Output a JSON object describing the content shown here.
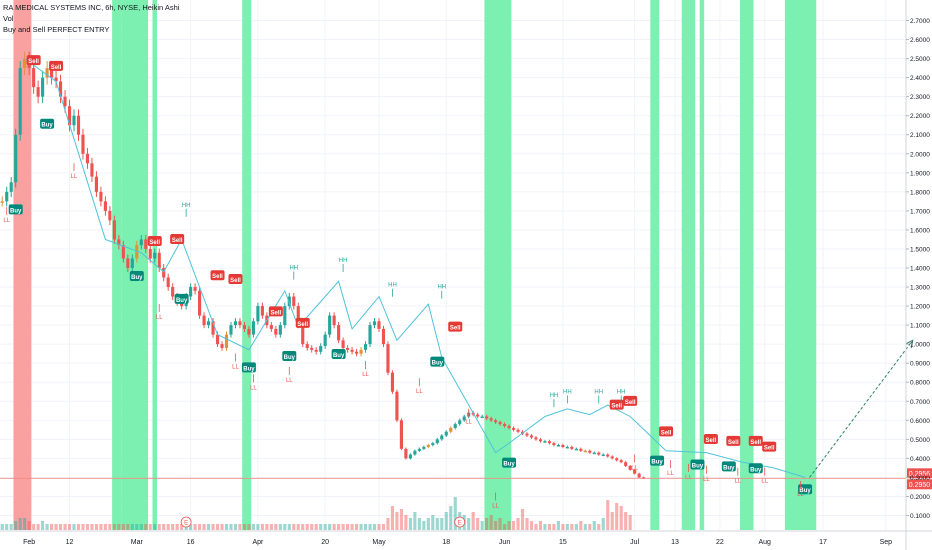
{
  "legend": {
    "title": "RA MEDICAL SYSTEMS INC, 6h, NYSE, Heikin Ashi",
    "vol": "Vol",
    "indicator": "Buy and Sell PERFECT ENTRY"
  },
  "colors": {
    "bull": "#26a69a",
    "bear": "#ef5350",
    "orange": "#e0913a",
    "green_zone": "#7cf0b0",
    "red_zone": "#f9a1a1",
    "zigzag": "#4fc3d9",
    "arrow": "#2e7d6a",
    "price_line": "#f28b82"
  },
  "chart_data": {
    "type": "candlestick",
    "title": "RA MEDICAL SYSTEMS INC, 6h, NYSE, Heikin Ashi",
    "yscale": "linear",
    "ylim": [
      0.05,
      2.75
    ],
    "yticks": [
      "2.7000",
      "2.6000",
      "2.5000",
      "2.4000",
      "2.3000",
      "2.2000",
      "2.1000",
      "2.0000",
      "1.9000",
      "1.8000",
      "1.7000",
      "1.6000",
      "1.5000",
      "1.4000",
      "1.3000",
      "1.2000",
      "1.1000",
      "1.0000",
      "0.9000",
      "0.8000",
      "0.7000",
      "0.6000",
      "0.5000",
      "0.4000",
      "0.3000",
      "0.2000",
      "0.1000"
    ],
    "xtick_labels": [
      {
        "label": "Feb",
        "i": 6
      },
      {
        "label": "12",
        "i": 15
      },
      {
        "label": "Mar",
        "i": 30
      },
      {
        "label": "16",
        "i": 42
      },
      {
        "label": "Apr",
        "i": 57
      },
      {
        "label": "20",
        "i": 72
      },
      {
        "label": "May",
        "i": 84
      },
      {
        "label": "18",
        "i": 99
      },
      {
        "label": "Jun",
        "i": 112
      },
      {
        "label": "15",
        "i": 125
      },
      {
        "label": "Jul",
        "i": 141
      },
      {
        "label": "13",
        "i": 150
      },
      {
        "label": "22",
        "i": 160
      },
      {
        "label": "Aug",
        "i": 170
      },
      {
        "label": "17",
        "i": 183
      },
      {
        "label": "Sep",
        "i": 197
      }
    ],
    "last_price_labels": [
      "0.2956",
      "0.2950"
    ],
    "price_marker": 0.2953,
    "n_slots": 202,
    "closes": [
      1.75,
      1.8,
      1.85,
      2.1,
      2.45,
      2.5,
      2.45,
      2.35,
      2.3,
      2.4,
      2.45,
      2.4,
      2.38,
      2.3,
      2.25,
      2.15,
      2.2,
      2.1,
      2.0,
      1.95,
      1.88,
      1.8,
      1.75,
      1.7,
      1.65,
      1.55,
      1.52,
      1.45,
      1.4,
      1.45,
      1.52,
      1.55,
      1.5,
      1.45,
      1.48,
      1.4,
      1.35,
      1.3,
      1.25,
      1.22,
      1.2,
      1.25,
      1.3,
      1.28,
      1.15,
      1.1,
      1.12,
      1.05,
      1.0,
      0.98,
      1.05,
      1.1,
      1.12,
      1.1,
      1.08,
      1.05,
      1.12,
      1.2,
      1.15,
      1.1,
      1.08,
      1.05,
      1.1,
      1.2,
      1.25,
      1.2,
      1.1,
      1.0,
      0.98,
      0.97,
      0.96,
      0.99,
      1.05,
      1.15,
      1.1,
      1.02,
      0.98,
      0.97,
      0.96,
      0.95,
      0.97,
      1.0,
      1.1,
      1.12,
      1.08,
      1.0,
      0.85,
      0.75,
      0.6,
      0.45,
      0.4,
      0.42,
      0.44,
      0.45,
      0.46,
      0.47,
      0.48,
      0.5,
      0.52,
      0.54,
      0.56,
      0.58,
      0.6,
      0.62,
      0.64,
      0.63,
      0.62,
      0.62,
      0.61,
      0.6,
      0.59,
      0.58,
      0.57,
      0.56,
      0.55,
      0.54,
      0.53,
      0.52,
      0.51,
      0.5,
      0.49,
      0.49,
      0.48,
      0.47,
      0.47,
      0.46,
      0.46,
      0.45,
      0.45,
      0.44,
      0.44,
      0.43,
      0.43,
      0.42,
      0.42,
      0.41,
      0.4,
      0.39,
      0.38,
      0.36,
      0.34,
      0.32,
      0.3,
      0.2953
    ],
    "volume_heights": [
      0.1,
      0.1,
      0.1,
      0.15,
      0.2,
      0.2,
      0.15,
      0.1,
      0.1,
      0.15,
      0.1,
      0.1,
      0.1,
      0.1,
      0.1,
      0.1,
      0.1,
      0.1,
      0.1,
      0.1,
      0.1,
      0.1,
      0.1,
      0.1,
      0.1,
      0.1,
      0.1,
      0.1,
      0.1,
      0.1,
      0.1,
      0.1,
      0.1,
      0.1,
      0.1,
      0.1,
      0.1,
      0.1,
      0.1,
      0.1,
      0.1,
      0.1,
      0.1,
      0.1,
      0.1,
      0.1,
      0.1,
      0.1,
      0.1,
      0.1,
      0.1,
      0.1,
      0.1,
      0.1,
      0.1,
      0.1,
      0.1,
      0.1,
      0.1,
      0.1,
      0.1,
      0.1,
      0.1,
      0.1,
      0.1,
      0.1,
      0.1,
      0.1,
      0.1,
      0.1,
      0.1,
      0.1,
      0.1,
      0.1,
      0.1,
      0.1,
      0.1,
      0.1,
      0.1,
      0.1,
      0.1,
      0.1,
      0.1,
      0.1,
      0.1,
      0.1,
      0.2,
      0.4,
      0.3,
      0.35,
      0.25,
      0.2,
      0.3,
      0.2,
      0.15,
      0.2,
      0.25,
      0.2,
      0.2,
      0.3,
      0.4,
      0.55,
      0.3,
      0.25,
      0.2,
      0.3,
      0.2,
      0.15,
      0.2,
      0.25,
      0.15,
      0.2,
      0.1,
      0.15,
      0.15,
      0.2,
      0.35,
      0.2,
      0.15,
      0.1,
      0.15,
      0.1,
      0.1,
      0.1,
      0.15,
      0.1,
      0.1,
      0.1,
      0.1,
      0.15,
      0.1,
      0.1,
      0.15,
      0.1,
      0.2,
      0.5,
      0.3,
      0.45,
      0.4,
      0.3,
      0.25
    ],
    "green_zones": [
      [
        25,
        26
      ],
      [
        27,
        32
      ],
      [
        34,
        34
      ],
      [
        54,
        55
      ],
      [
        108,
        113
      ],
      [
        145,
        146
      ],
      [
        152,
        154
      ],
      [
        156,
        156
      ],
      [
        165,
        167
      ],
      [
        175,
        181
      ]
    ],
    "red_zones": [
      [
        3,
        6
      ]
    ],
    "buy_labels": [
      [
        3,
        1.75
      ],
      [
        10,
        2.2
      ],
      [
        30,
        1.4
      ],
      [
        40,
        1.28
      ],
      [
        55,
        0.92
      ],
      [
        64,
        0.98
      ],
      [
        75,
        0.99
      ],
      [
        97,
        0.95
      ],
      [
        113,
        0.42
      ],
      [
        146,
        0.43
      ],
      [
        155,
        0.41
      ],
      [
        162,
        0.4
      ],
      [
        168,
        0.39
      ],
      [
        179,
        0.28
      ]
    ],
    "sell_labels": [
      [
        7,
        2.45
      ],
      [
        12,
        2.42
      ],
      [
        34,
        1.5
      ],
      [
        39,
        1.51
      ],
      [
        48,
        1.32
      ],
      [
        52,
        1.3
      ],
      [
        61,
        1.13
      ],
      [
        67,
        1.07
      ],
      [
        101,
        1.05
      ],
      [
        137,
        0.64
      ],
      [
        140,
        0.66
      ],
      [
        148,
        0.5
      ],
      [
        158,
        0.46
      ],
      [
        163,
        0.45
      ],
      [
        168,
        0.45
      ],
      [
        171,
        0.42
      ]
    ],
    "hh_labels": [
      [
        41,
        1.69
      ],
      [
        65,
        1.36
      ],
      [
        76,
        1.4
      ],
      [
        87,
        1.27
      ],
      [
        98,
        1.26
      ],
      [
        123,
        0.69
      ],
      [
        126,
        0.71
      ],
      [
        133,
        0.71
      ],
      [
        138,
        0.71
      ]
    ],
    "ll_labels": [
      [
        1,
        1.7
      ],
      [
        16,
        1.93
      ],
      [
        35,
        1.19
      ],
      [
        52,
        0.93
      ],
      [
        56,
        0.82
      ],
      [
        64,
        0.86
      ],
      [
        81,
        0.89
      ],
      [
        93,
        0.8
      ],
      [
        104,
        0.64
      ],
      [
        110,
        0.2
      ],
      [
        141,
        0.4
      ],
      [
        149,
        0.37
      ],
      [
        153,
        0.35
      ],
      [
        157,
        0.34
      ],
      [
        164,
        0.33
      ],
      [
        170,
        0.33
      ],
      [
        178,
        0.26
      ]
    ],
    "zigzag": [
      [
        5,
        2.5
      ],
      [
        12,
        2.38
      ],
      [
        23,
        1.55
      ],
      [
        31,
        1.48
      ],
      [
        36,
        1.38
      ],
      [
        40,
        1.55
      ],
      [
        48,
        1.05
      ],
      [
        55,
        0.97
      ],
      [
        63,
        1.28
      ],
      [
        66,
        1.09
      ],
      [
        75,
        1.33
      ],
      [
        78,
        1.08
      ],
      [
        84,
        1.25
      ],
      [
        88,
        1.02
      ],
      [
        95,
        1.21
      ],
      [
        98,
        0.93
      ],
      [
        110,
        0.43
      ],
      [
        113,
        0.48
      ],
      [
        121,
        0.62
      ],
      [
        126,
        0.66
      ],
      [
        131,
        0.63
      ],
      [
        135,
        0.68
      ],
      [
        140,
        0.62
      ],
      [
        148,
        0.44
      ],
      [
        157,
        0.43
      ],
      [
        165,
        0.38
      ],
      [
        172,
        0.35
      ],
      [
        179,
        0.3
      ]
    ],
    "arrow": [
      [
        180,
        0.3
      ],
      [
        203,
        1.02
      ]
    ],
    "earnings_markers": [
      [
        41,
        "E"
      ],
      [
        102,
        "E"
      ]
    ]
  }
}
